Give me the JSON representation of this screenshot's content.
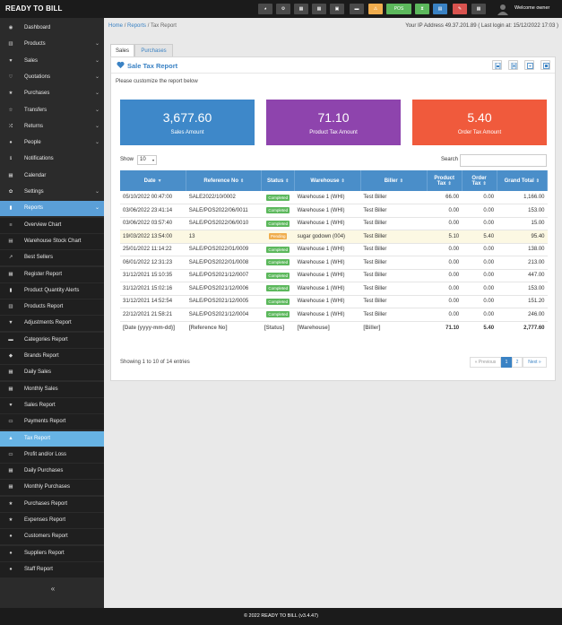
{
  "brand": "READY TO BILL",
  "topbar": {
    "pos_label": "POS",
    "welcome": "Welcome owner",
    "buttons": [
      {
        "name": "dashboard-icon",
        "color": "#4a4a4a"
      },
      {
        "name": "settings-icon",
        "color": "#4a4a4a"
      },
      {
        "name": "calculator-icon",
        "color": "#4a4a4a"
      },
      {
        "name": "calendar-icon",
        "color": "#4a4a4a"
      },
      {
        "name": "register-icon",
        "color": "#4a4a4a"
      },
      {
        "name": "language-flag-icon",
        "color": "#4a4a4a"
      },
      {
        "name": "alerts-icon",
        "color": "#f0ad4e"
      },
      {
        "name": "pos-button",
        "color": "#5cb85c"
      },
      {
        "name": "hourglass-icon",
        "color": "#5cb85c"
      },
      {
        "name": "list-icon",
        "color": "#3a82c4"
      },
      {
        "name": "tag-icon",
        "color": "#d9534f"
      },
      {
        "name": "grid-icon",
        "color": "#4a4a4a"
      }
    ]
  },
  "sidebar": {
    "items": [
      {
        "label": "Dashboard",
        "icon": "dashboard-icon",
        "glyph": "◉",
        "chev": false,
        "state": "normal"
      },
      {
        "label": "Products",
        "icon": "barcode-icon",
        "glyph": "▥",
        "chev": true,
        "state": "normal"
      },
      {
        "label": "Sales",
        "icon": "heart-icon",
        "glyph": "♥",
        "chev": true,
        "state": "normal"
      },
      {
        "label": "Quotations",
        "icon": "heart-outline-icon",
        "glyph": "♡",
        "chev": true,
        "state": "normal"
      },
      {
        "label": "Purchases",
        "icon": "star-icon",
        "glyph": "★",
        "chev": true,
        "state": "normal"
      },
      {
        "label": "Transfers",
        "icon": "star-outline-icon",
        "glyph": "☆",
        "chev": true,
        "state": "normal"
      },
      {
        "label": "Returns",
        "icon": "random-icon",
        "glyph": "⤮",
        "chev": true,
        "state": "normal"
      },
      {
        "label": "People",
        "icon": "users-icon",
        "glyph": "●",
        "chev": true,
        "state": "normal"
      },
      {
        "label": "Notifications",
        "icon": "info-icon",
        "glyph": "ℹ",
        "chev": false,
        "state": "normal"
      },
      {
        "label": "Calendar",
        "icon": "calendar-icon",
        "glyph": "▦",
        "chev": false,
        "state": "normal"
      },
      {
        "label": "Settings",
        "icon": "cog-icon",
        "glyph": "✿",
        "chev": true,
        "state": "normal"
      },
      {
        "label": "Reports",
        "icon": "chart-icon",
        "glyph": "▮",
        "chev": true,
        "state": "active-parent"
      },
      {
        "label": "Overview Chart",
        "icon": "bars-icon",
        "glyph": "≡",
        "chev": false,
        "state": "sub"
      },
      {
        "label": "Warehouse Stock Chart",
        "icon": "building-icon",
        "glyph": "▤",
        "chev": false,
        "state": "sub"
      },
      {
        "label": "Best Sellers",
        "icon": "line-chart-icon",
        "glyph": "↗",
        "chev": false,
        "state": "sub"
      },
      {
        "label": "Register Report",
        "icon": "th-icon",
        "glyph": "▦",
        "chev": false,
        "state": "sub"
      },
      {
        "label": "Product Quantity Alerts",
        "icon": "bar-chart-icon",
        "glyph": "▮",
        "chev": false,
        "state": "sub"
      },
      {
        "label": "Products Report",
        "icon": "barcode-icon",
        "glyph": "▥",
        "chev": false,
        "state": "sub"
      },
      {
        "label": "Adjustments Report",
        "icon": "filter-icon",
        "glyph": "▼",
        "chev": false,
        "state": "sub"
      },
      {
        "label": "Categories Report",
        "icon": "folder-icon",
        "glyph": "▬",
        "chev": false,
        "state": "sub"
      },
      {
        "label": "Brands Report",
        "icon": "cubes-icon",
        "glyph": "◆",
        "chev": false,
        "state": "sub"
      },
      {
        "label": "Daily Sales",
        "icon": "calendar-icon",
        "glyph": "▦",
        "chev": false,
        "state": "sub"
      },
      {
        "label": "Monthly Sales",
        "icon": "calendar-icon",
        "glyph": "▦",
        "chev": false,
        "state": "sub"
      },
      {
        "label": "Sales Report",
        "icon": "heart-icon",
        "glyph": "♥",
        "chev": false,
        "state": "sub"
      },
      {
        "label": "Payments Report",
        "icon": "money-icon",
        "glyph": "▭",
        "chev": false,
        "state": "sub"
      },
      {
        "label": "Tax Report",
        "icon": "area-chart-icon",
        "glyph": "▲",
        "chev": false,
        "state": "active"
      },
      {
        "label": "Profit and/or Loss",
        "icon": "money-icon",
        "glyph": "▭",
        "chev": false,
        "state": "sub"
      },
      {
        "label": "Daily Purchases",
        "icon": "calendar-icon",
        "glyph": "▦",
        "chev": false,
        "state": "sub"
      },
      {
        "label": "Monthly Purchases",
        "icon": "calendar-icon",
        "glyph": "▦",
        "chev": false,
        "state": "sub"
      },
      {
        "label": "Purchases Report",
        "icon": "star-icon",
        "glyph": "★",
        "chev": false,
        "state": "sub"
      },
      {
        "label": "Expenses Report",
        "icon": "star-icon",
        "glyph": "★",
        "chev": false,
        "state": "sub"
      },
      {
        "label": "Customers Report",
        "icon": "users-icon",
        "glyph": "●",
        "chev": false,
        "state": "sub"
      },
      {
        "label": "Suppliers Report",
        "icon": "users-icon",
        "glyph": "●",
        "chev": false,
        "state": "sub"
      },
      {
        "label": "Staff Report",
        "icon": "users-icon",
        "glyph": "●",
        "chev": false,
        "state": "sub"
      }
    ],
    "collapse_glyph": "«"
  },
  "breadcrumb": {
    "home": "Home",
    "reports": "Reports",
    "current": "Tax Report"
  },
  "ip_info": "Your IP Address 49.37.201.89 ( Last login at: 15/12/2022 17:03 )",
  "tabs": [
    {
      "label": "Sales"
    },
    {
      "label": "Purchases"
    }
  ],
  "card": {
    "title": "Sale Tax Report",
    "customize": "Please customize the report below"
  },
  "stats": [
    {
      "value": "3,677.60",
      "caption": "Sales Amount",
      "color": "#3e88c9"
    },
    {
      "value": "71.10",
      "caption": "Product Tax Amount",
      "color": "#8e44ad"
    },
    {
      "value": "5.40",
      "caption": "Order Tax Amount",
      "color": "#f05a3c"
    }
  ],
  "table_controls": {
    "show_label": "Show",
    "page_size": "10",
    "search_label": "Search"
  },
  "table": {
    "headers": [
      "Date",
      "Reference No",
      "Status",
      "Warehouse",
      "Biller",
      "Product Tax",
      "Order Tax",
      "Grand Total"
    ],
    "rows": [
      {
        "date": "05/10/2022 00:47:00",
        "ref": "SALE2022/10/0002",
        "status": "Completed",
        "warehouse": "Warehouse 1 (WHI)",
        "biller": "Test Biller",
        "ptax": "66.00",
        "otax": "0.00",
        "total": "1,166.00"
      },
      {
        "date": "03/06/2022 23:41:14",
        "ref": "SALE/POS2022/06/0011",
        "status": "Completed",
        "warehouse": "Warehouse 1 (WHI)",
        "biller": "Test Biller",
        "ptax": "0.00",
        "otax": "0.00",
        "total": "153.00"
      },
      {
        "date": "03/06/2022 03:57:40",
        "ref": "SALE/POS2022/06/0010",
        "status": "Completed",
        "warehouse": "Warehouse 1 (WHI)",
        "biller": "Test Biller",
        "ptax": "0.00",
        "otax": "0.00",
        "total": "15.00"
      },
      {
        "date": "19/03/2022 13:54:00",
        "ref": "13",
        "status": "Pending",
        "warehouse": "sugar godown (004)",
        "biller": "Test Biller",
        "ptax": "5.10",
        "otax": "5.40",
        "total": "95.40"
      },
      {
        "date": "25/01/2022 11:14:22",
        "ref": "SALE/POS2022/01/0009",
        "status": "Completed",
        "warehouse": "Warehouse 1 (WHI)",
        "biller": "Test Biller",
        "ptax": "0.00",
        "otax": "0.00",
        "total": "138.00"
      },
      {
        "date": "06/01/2022 12:31:23",
        "ref": "SALE/POS2022/01/0008",
        "status": "Completed",
        "warehouse": "Warehouse 1 (WHI)",
        "biller": "Test Biller",
        "ptax": "0.00",
        "otax": "0.00",
        "total": "213.00"
      },
      {
        "date": "31/12/2021 15:10:35",
        "ref": "SALE/POS2021/12/0007",
        "status": "Completed",
        "warehouse": "Warehouse 1 (WHI)",
        "biller": "Test Biller",
        "ptax": "0.00",
        "otax": "0.00",
        "total": "447.00"
      },
      {
        "date": "31/12/2021 15:02:16",
        "ref": "SALE/POS2021/12/0006",
        "status": "Completed",
        "warehouse": "Warehouse 1 (WHI)",
        "biller": "Test Biller",
        "ptax": "0.00",
        "otax": "0.00",
        "total": "153.00"
      },
      {
        "date": "31/12/2021 14:52:54",
        "ref": "SALE/POS2021/12/0005",
        "status": "Completed",
        "warehouse": "Warehouse 1 (WHI)",
        "biller": "Test Biller",
        "ptax": "0.00",
        "otax": "0.00",
        "total": "151.20"
      },
      {
        "date": "22/12/2021 21:58:21",
        "ref": "SALE/POS2021/12/0004",
        "status": "Completed",
        "warehouse": "Warehouse 1 (WHI)",
        "biller": "Test Biller",
        "ptax": "0.00",
        "otax": "0.00",
        "total": "246.00"
      }
    ],
    "footer": {
      "date": "[Date (yyyy-mm-dd)]",
      "ref": "[Reference No]",
      "status": "[Status]",
      "warehouse": "[Warehouse]",
      "biller": "[Biller]",
      "ptax": "71.10",
      "otax": "5.40",
      "total": "2,777.60"
    }
  },
  "pagination": {
    "info": "Showing 1 to 10 of 14 entries",
    "prev": "« Previous",
    "pages": [
      "1",
      "2"
    ],
    "next": "Next »"
  },
  "footer_text": "© 2022 READY TO BILL (v3.4.47)"
}
